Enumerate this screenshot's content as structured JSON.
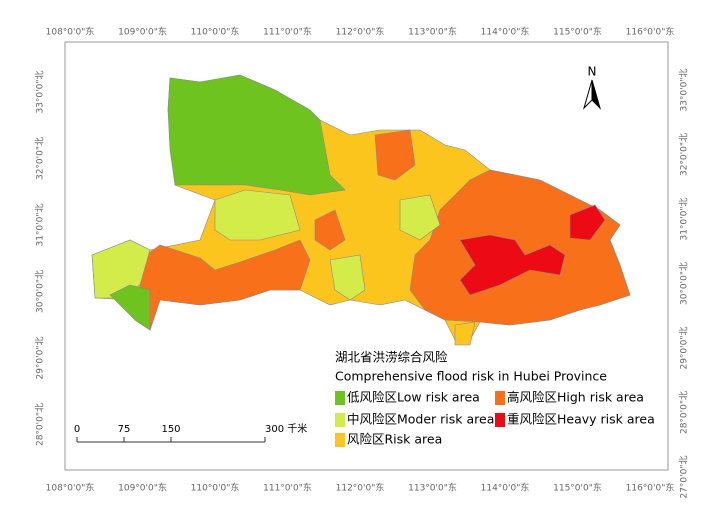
{
  "map": {
    "top_labels": [
      "108°0'0\"东",
      "109°0'0\"东",
      "110°0'0\"东",
      "111°0'0\"东",
      "112°0'0\"东",
      "113°0'0\"东",
      "114°0'0\"东",
      "115°0'0\"东",
      "116°0'0\"东"
    ],
    "bottom_labels": [
      "108°0'0\"东",
      "109°0'0\"东",
      "110°0'0\"东",
      "111°0'0\"东",
      "112°0'0\"东",
      "113°0'0\"东",
      "114°0'0\"东",
      "115°0'0\"东",
      "116°0'0\"东"
    ],
    "left_labels": [
      "33°0'0\"北",
      "32°0'0\"北",
      "31°0'0\"北",
      "30°0'0\"北",
      "29°0'0\"北",
      "28°0'0\"北"
    ],
    "right_labels": [
      "33°0'0\"北",
      "32°0'0\"北",
      "31°0'0\"北",
      "30°0'0\"北",
      "29°0'0\"北",
      "28°0'0\"北",
      "27°0'0\"北"
    ],
    "north": "N",
    "title_cn": "湖北省洪涝综合风险",
    "title_en": "Comprehensive flood risk in Hubei Province",
    "legend": [
      {
        "label": "低风险区Low risk area",
        "color": "#6fc31e"
      },
      {
        "label": "中风险区Moder risk area",
        "color": "#d4ec4a"
      },
      {
        "label": "风险区Risk area",
        "color": "#fcc51e"
      },
      {
        "label": "高风险区High risk area",
        "color": "#f8701a"
      },
      {
        "label": "重风险区Heavy risk area",
        "color": "#ec0a14"
      }
    ],
    "scale_bar": [
      "0",
      "75",
      "150",
      "300 千米"
    ]
  }
}
